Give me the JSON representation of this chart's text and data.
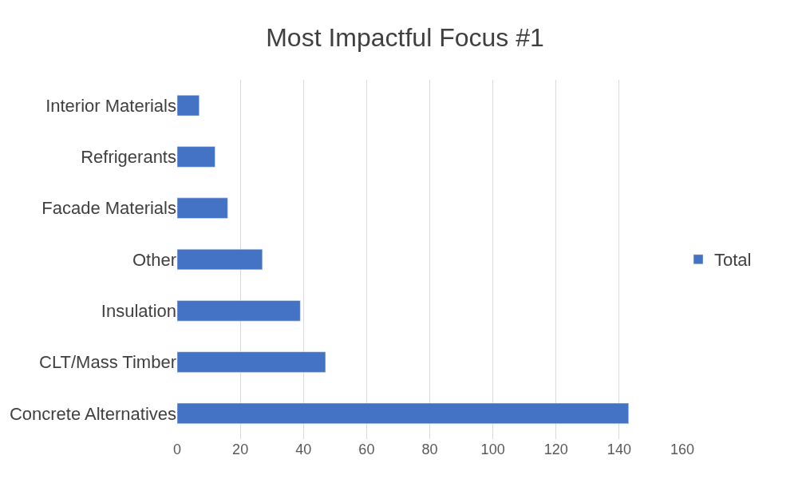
{
  "chart_data": {
    "type": "bar",
    "title": "Most Impactful Focus #1",
    "orientation": "horizontal",
    "categories": [
      "Interior Materials",
      "Refrigerants",
      "Facade Materials",
      "Other",
      "Insulation",
      "CLT/Mass Timber",
      "Concrete Alternatives"
    ],
    "series": [
      {
        "name": "Total",
        "color": "#4472c4",
        "values": [
          7,
          12,
          16,
          27,
          39,
          47,
          143
        ]
      }
    ],
    "xlim": [
      0,
      160
    ],
    "xticks": [
      0,
      20,
      40,
      60,
      80,
      100,
      120,
      140,
      160
    ],
    "grid": "x",
    "legend": "right"
  }
}
